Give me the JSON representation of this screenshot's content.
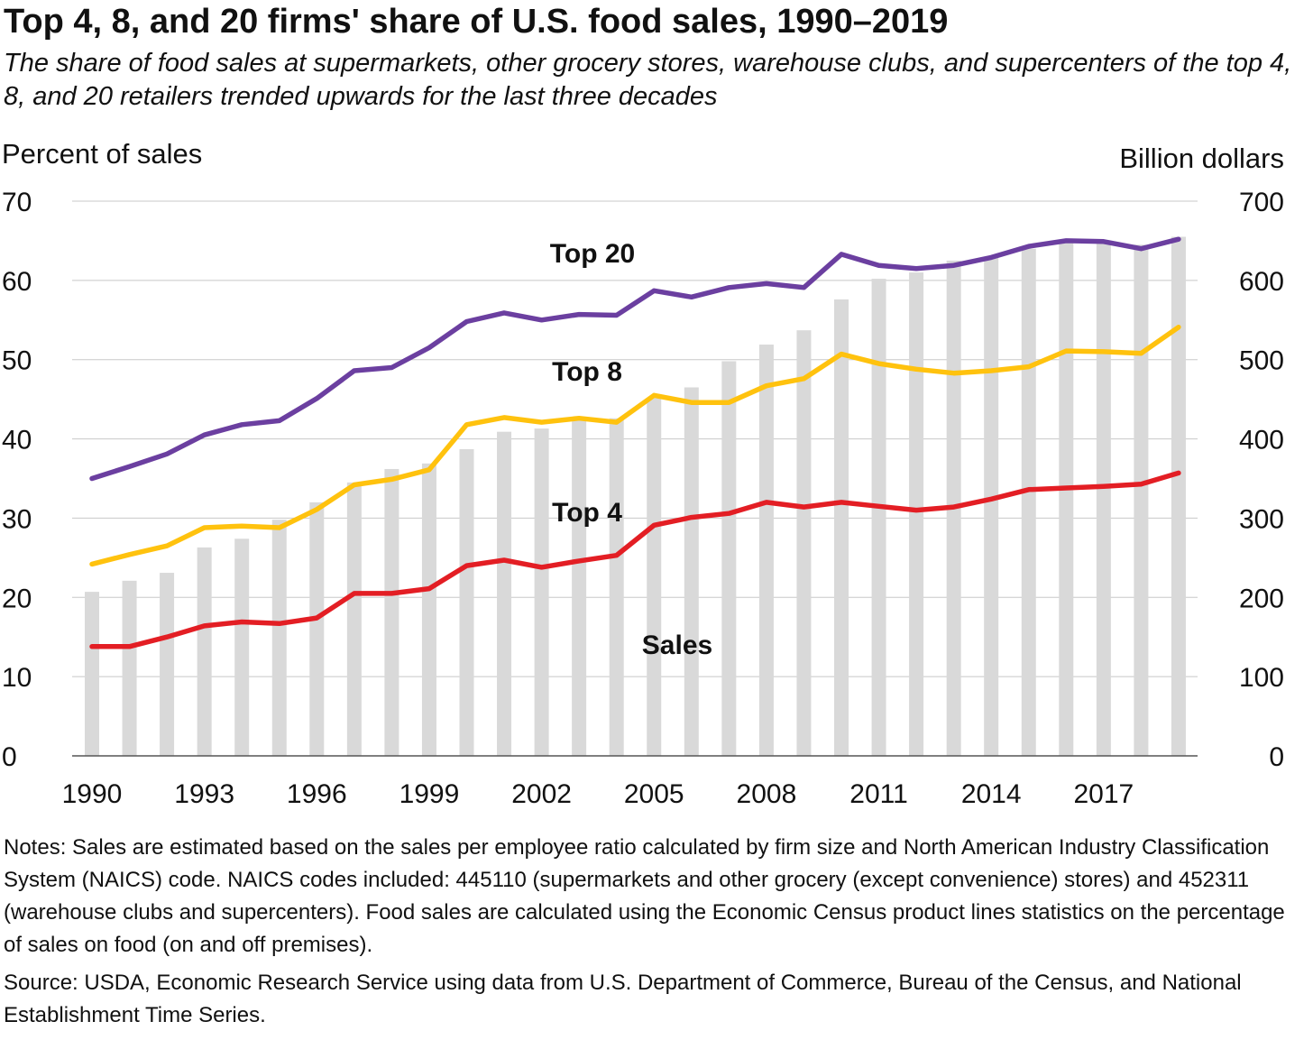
{
  "title": "Top 4, 8, and 20 firms' share of U.S. food sales, 1990–2019",
  "subtitle": "The share of food sales at supermarkets, other grocery stores, warehouse clubs, and supercenters of the top 4, 8, and 20 retailers trended upwards for the last three decades",
  "notes": "Notes: Sales are estimated based on the sales per employee ratio calculated by firm size and North American Industry Classification System (NAICS) code. NAICS codes included: 445110 (supermarkets and other grocery (except convenience) stores) and 452311 (warehouse clubs and supercenters). Food sales are calculated using the Economic Census product lines statistics on the percentage of sales on food (on and off premises).",
  "source": "Source: USDA, Economic Research Service using data from U.S. Department of Commerce, Bureau of the Census, and National Establishment Time Series.",
  "colors": {
    "top20": "#6b3fa0",
    "top8": "#ffc20e",
    "top4": "#e31e24",
    "sales": "#d9d9d9",
    "grid": "#c8c8c8"
  },
  "chart_data": {
    "type": "bar",
    "title": "Top 4, 8, and 20 firms' share of U.S. food sales, 1990–2019",
    "subtitle": "The share of food sales at supermarkets, other grocery stores, warehouse clubs, and supercenters of the top 4, 8, and 20 retailers trended upwards for the last three decades",
    "ylabel": "Percent of sales",
    "y2label": "Billion dollars",
    "ylim": [
      0,
      70
    ],
    "y2lim": [
      0,
      700
    ],
    "yticks": [
      0,
      10,
      20,
      30,
      40,
      50,
      60,
      70
    ],
    "y2ticks": [
      0,
      100,
      200,
      300,
      400,
      500,
      600,
      700
    ],
    "x": [
      1990,
      1991,
      1992,
      1993,
      1994,
      1995,
      1996,
      1997,
      1998,
      1999,
      2000,
      2001,
      2002,
      2003,
      2004,
      2005,
      2006,
      2007,
      2008,
      2009,
      2010,
      2011,
      2012,
      2013,
      2014,
      2015,
      2016,
      2017,
      2018,
      2019
    ],
    "xticklabels": [
      "1990",
      "1993",
      "1996",
      "1999",
      "2002",
      "2005",
      "2008",
      "2011",
      "2014",
      "2017"
    ],
    "grid": true,
    "legend": "none (inline labels)",
    "series": [
      {
        "name": "Sales",
        "type": "bar",
        "axis": "right",
        "values": [
          207,
          221,
          231,
          263,
          274,
          298,
          320,
          345,
          362,
          369,
          387,
          409,
          413,
          428,
          426,
          452,
          465,
          498,
          519,
          537,
          576,
          602,
          610,
          625,
          630,
          640,
          650,
          650,
          645,
          655
        ]
      },
      {
        "name": "Top 20",
        "type": "line",
        "axis": "left",
        "values": [
          35.0,
          36.5,
          38.1,
          40.5,
          41.8,
          42.3,
          45.1,
          48.6,
          49.0,
          51.5,
          54.8,
          55.9,
          55.0,
          55.7,
          55.6,
          58.7,
          57.9,
          59.1,
          59.6,
          59.1,
          63.3,
          61.9,
          61.5,
          61.9,
          62.9,
          64.3,
          65.0,
          64.9,
          64.0,
          65.2
        ]
      },
      {
        "name": "Top 8",
        "type": "line",
        "axis": "left",
        "values": [
          24.2,
          25.4,
          26.5,
          28.8,
          29.0,
          28.8,
          31.1,
          34.2,
          34.9,
          36.1,
          41.8,
          42.7,
          42.1,
          42.6,
          42.1,
          45.5,
          44.6,
          44.6,
          46.7,
          47.6,
          50.7,
          49.5,
          48.8,
          48.3,
          48.6,
          49.1,
          51.1,
          51.0,
          50.8,
          54.1
        ]
      },
      {
        "name": "Top 4",
        "type": "line",
        "axis": "left",
        "values": [
          13.8,
          13.8,
          15.0,
          16.4,
          16.9,
          16.7,
          17.4,
          20.5,
          20.5,
          21.1,
          24.0,
          24.7,
          23.8,
          24.6,
          25.3,
          29.1,
          30.1,
          30.6,
          32.0,
          31.4,
          32.0,
          31.5,
          31.0,
          31.4,
          32.4,
          33.6,
          33.8,
          34.0,
          34.3,
          35.7
        ]
      }
    ],
    "labels": {
      "top20": "Top 20",
      "top8": "Top 8",
      "top4": "Top 4",
      "sales": "Sales"
    }
  }
}
